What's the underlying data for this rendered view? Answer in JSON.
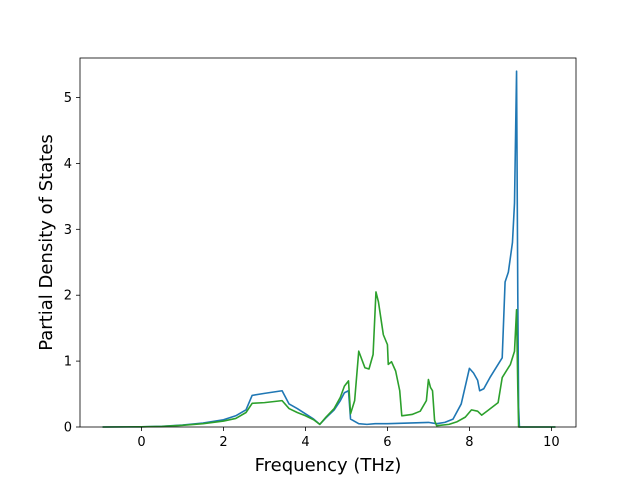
{
  "chart_data": {
    "type": "line",
    "xlabel": "Frequency (THz)",
    "ylabel": "Partial Density of States",
    "xlim": [
      -1.5,
      10.6
    ],
    "ylim": [
      0,
      5.6
    ],
    "xticks": [
      0,
      2,
      4,
      6,
      8,
      10
    ],
    "yticks": [
      0,
      1,
      2,
      3,
      4,
      5
    ],
    "grid": false,
    "series": [
      {
        "color": "#1f77b4",
        "points": [
          [
            -0.95,
            0
          ],
          [
            0,
            0.003
          ],
          [
            0.5,
            0.01
          ],
          [
            1.0,
            0.03
          ],
          [
            1.5,
            0.06
          ],
          [
            2.0,
            0.11
          ],
          [
            2.3,
            0.17
          ],
          [
            2.55,
            0.26
          ],
          [
            2.7,
            0.48
          ],
          [
            3.0,
            0.51
          ],
          [
            3.43,
            0.55
          ],
          [
            3.6,
            0.35
          ],
          [
            3.8,
            0.28
          ],
          [
            4.0,
            0.2
          ],
          [
            4.2,
            0.12
          ],
          [
            4.35,
            0.04
          ],
          [
            4.5,
            0.14
          ],
          [
            4.7,
            0.26
          ],
          [
            4.85,
            0.4
          ],
          [
            4.95,
            0.52
          ],
          [
            5.05,
            0.55
          ],
          [
            5.1,
            0.12
          ],
          [
            5.3,
            0.05
          ],
          [
            5.5,
            0.04
          ],
          [
            5.7,
            0.05
          ],
          [
            6.0,
            0.05
          ],
          [
            6.5,
            0.06
          ],
          [
            7.0,
            0.07
          ],
          [
            7.2,
            0.05
          ],
          [
            7.4,
            0.07
          ],
          [
            7.6,
            0.12
          ],
          [
            7.8,
            0.35
          ],
          [
            8.0,
            0.89
          ],
          [
            8.1,
            0.82
          ],
          [
            8.2,
            0.71
          ],
          [
            8.25,
            0.55
          ],
          [
            8.35,
            0.58
          ],
          [
            8.5,
            0.75
          ],
          [
            8.75,
            1.0
          ],
          [
            8.8,
            1.05
          ],
          [
            8.87,
            2.2
          ],
          [
            8.95,
            2.35
          ],
          [
            9.05,
            2.8
          ],
          [
            9.1,
            3.4
          ],
          [
            9.15,
            5.4
          ],
          [
            9.18,
            2.0
          ],
          [
            9.2,
            0.3
          ],
          [
            9.22,
            0
          ],
          [
            10.1,
            0
          ]
        ]
      },
      {
        "color": "#2ca02c",
        "points": [
          [
            -0.95,
            0
          ],
          [
            0,
            0.003
          ],
          [
            0.5,
            0.008
          ],
          [
            1.0,
            0.025
          ],
          [
            1.5,
            0.05
          ],
          [
            2.0,
            0.09
          ],
          [
            2.3,
            0.13
          ],
          [
            2.55,
            0.22
          ],
          [
            2.7,
            0.36
          ],
          [
            3.0,
            0.37
          ],
          [
            3.43,
            0.4
          ],
          [
            3.6,
            0.28
          ],
          [
            3.8,
            0.22
          ],
          [
            4.0,
            0.17
          ],
          [
            4.2,
            0.11
          ],
          [
            4.35,
            0.04
          ],
          [
            4.5,
            0.15
          ],
          [
            4.7,
            0.28
          ],
          [
            4.85,
            0.45
          ],
          [
            4.95,
            0.62
          ],
          [
            5.05,
            0.7
          ],
          [
            5.1,
            0.2
          ],
          [
            5.2,
            0.4
          ],
          [
            5.3,
            1.15
          ],
          [
            5.45,
            0.9
          ],
          [
            5.55,
            0.88
          ],
          [
            5.65,
            1.1
          ],
          [
            5.72,
            2.05
          ],
          [
            5.78,
            1.9
          ],
          [
            5.9,
            1.4
          ],
          [
            6.0,
            1.25
          ],
          [
            6.02,
            0.95
          ],
          [
            6.1,
            0.99
          ],
          [
            6.2,
            0.85
          ],
          [
            6.3,
            0.55
          ],
          [
            6.35,
            0.17
          ],
          [
            6.6,
            0.19
          ],
          [
            6.8,
            0.24
          ],
          [
            6.95,
            0.4
          ],
          [
            7.0,
            0.72
          ],
          [
            7.05,
            0.6
          ],
          [
            7.1,
            0.55
          ],
          [
            7.15,
            0.1
          ],
          [
            7.2,
            0.02
          ],
          [
            7.5,
            0.04
          ],
          [
            7.7,
            0.08
          ],
          [
            7.9,
            0.15
          ],
          [
            8.05,
            0.26
          ],
          [
            8.2,
            0.24
          ],
          [
            8.3,
            0.18
          ],
          [
            8.45,
            0.25
          ],
          [
            8.7,
            0.37
          ],
          [
            8.8,
            0.75
          ],
          [
            9.0,
            0.95
          ],
          [
            9.1,
            1.15
          ],
          [
            9.15,
            1.78
          ],
          [
            9.18,
            0.6
          ],
          [
            9.2,
            0
          ],
          [
            10.1,
            0
          ]
        ]
      }
    ]
  }
}
